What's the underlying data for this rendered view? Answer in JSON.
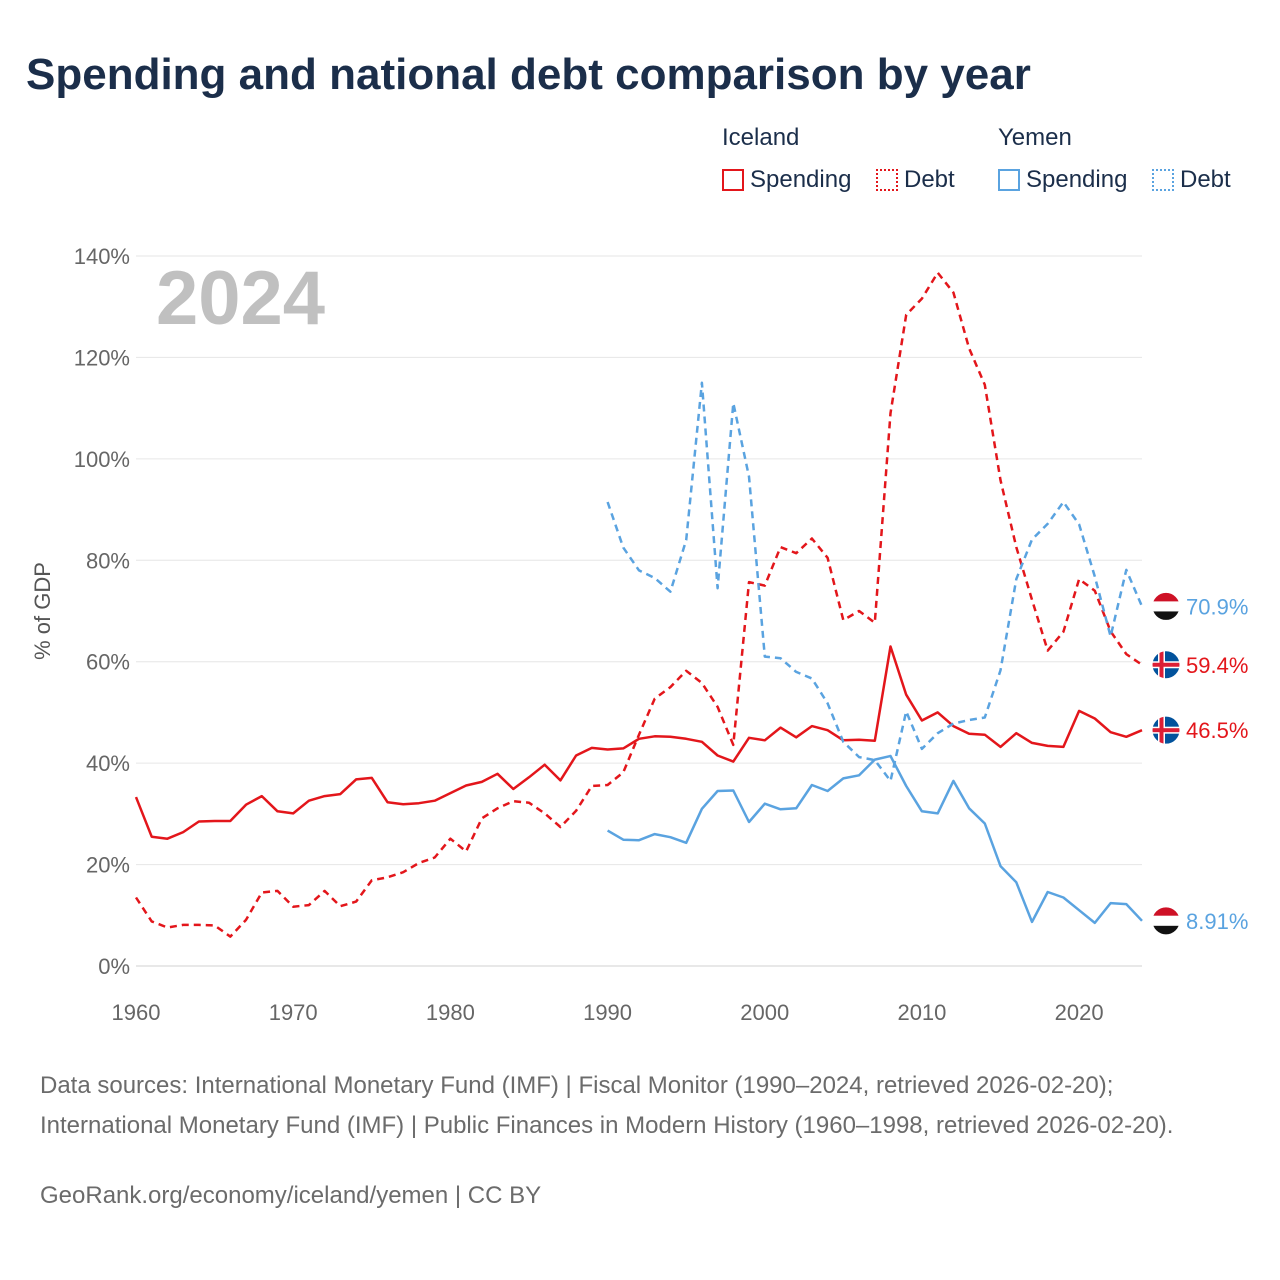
{
  "title": "Spending and national debt comparison by year",
  "legend": {
    "groups": [
      {
        "name": "Iceland",
        "color": "#e3161b",
        "items": [
          "Spending",
          "Debt"
        ]
      },
      {
        "name": "Yemen",
        "color": "#5aa3e0",
        "items": [
          "Spending",
          "Debt"
        ]
      }
    ]
  },
  "source_text": "Data sources: International Monetary Fund (IMF) | Fiscal Monitor (1990–2024, retrieved 2026-02-20); International Monetary Fund (IMF) | Public Finances in Modern History (1960–1998, retrieved 2026-02-20).",
  "credit": "GeoRank.org/economy/iceland/yemen | CC BY",
  "chart_data": {
    "type": "line",
    "title": "Spending and national debt comparison by year",
    "watermark_year": "2024",
    "xlabel": "",
    "ylabel": "% of GDP",
    "xlim": [
      1960,
      2024
    ],
    "ylim": [
      0,
      140
    ],
    "x_ticks": [
      1960,
      1970,
      1980,
      1990,
      2000,
      2010,
      2020
    ],
    "y_ticks": [
      0,
      20,
      40,
      60,
      80,
      100,
      120,
      140
    ],
    "y_tick_labels": [
      "0%",
      "20%",
      "40%",
      "60%",
      "80%",
      "100%",
      "120%",
      "140%"
    ],
    "grid": true,
    "series": [
      {
        "name": "Iceland Spending",
        "country": "Iceland",
        "color": "#e3161b",
        "dash": "solid",
        "end_label": "46.5%",
        "x": [
          1960,
          1961,
          1962,
          1963,
          1964,
          1965,
          1966,
          1967,
          1968,
          1969,
          1970,
          1971,
          1972,
          1973,
          1974,
          1975,
          1976,
          1977,
          1978,
          1979,
          1980,
          1981,
          1982,
          1983,
          1984,
          1985,
          1986,
          1987,
          1988,
          1989,
          1990,
          1991,
          1992,
          1993,
          1994,
          1995,
          1996,
          1997,
          1998,
          1999,
          2000,
          2001,
          2002,
          2003,
          2004,
          2005,
          2006,
          2007,
          2008,
          2009,
          2010,
          2011,
          2012,
          2013,
          2014,
          2015,
          2016,
          2017,
          2018,
          2019,
          2020,
          2021,
          2022,
          2023,
          2024
        ],
        "values": [
          33.3,
          25.5,
          25.1,
          26.4,
          28.5,
          28.6,
          28.6,
          31.8,
          33.5,
          30.5,
          30.1,
          32.6,
          33.5,
          33.9,
          36.8,
          37.1,
          32.3,
          31.9,
          32.1,
          32.6,
          34.1,
          35.6,
          36.3,
          37.9,
          34.9,
          37.2,
          39.7,
          36.6,
          41.5,
          43.0,
          42.7,
          42.9,
          44.8,
          45.3,
          45.2,
          44.8,
          44.2,
          41.5,
          40.3,
          45.0,
          44.5,
          47.0,
          45.1,
          47.3,
          46.5,
          44.5,
          44.6,
          44.4,
          63.0,
          53.5,
          48.4,
          50.0,
          47.3,
          45.8,
          45.6,
          43.2,
          45.9,
          44.0,
          43.4,
          43.2,
          50.3,
          48.8,
          46.1,
          45.2,
          46.5
        ]
      },
      {
        "name": "Iceland Debt",
        "country": "Iceland",
        "color": "#e3161b",
        "dash": "dashed",
        "end_label": "59.4%",
        "x": [
          1960,
          1961,
          1962,
          1963,
          1964,
          1965,
          1966,
          1967,
          1968,
          1969,
          1970,
          1971,
          1972,
          1973,
          1974,
          1975,
          1976,
          1977,
          1978,
          1979,
          1980,
          1981,
          1982,
          1983,
          1984,
          1985,
          1986,
          1987,
          1988,
          1989,
          1990,
          1991,
          1992,
          1993,
          1994,
          1995,
          1996,
          1997,
          1998,
          1999,
          2000,
          2001,
          2002,
          2003,
          2004,
          2005,
          2006,
          2007,
          2008,
          2009,
          2010,
          2011,
          2012,
          2013,
          2014,
          2015,
          2016,
          2017,
          2018,
          2019,
          2020,
          2021,
          2022,
          2023,
          2024
        ],
        "values": [
          13.5,
          8.8,
          7.6,
          8.1,
          8.1,
          8.0,
          5.8,
          9.1,
          14.5,
          14.8,
          11.7,
          12.0,
          14.8,
          11.8,
          12.7,
          16.9,
          17.5,
          18.5,
          20.3,
          21.4,
          25.1,
          22.6,
          29.1,
          31.1,
          32.5,
          32.2,
          30.1,
          27.4,
          30.6,
          35.5,
          35.7,
          38.2,
          45.6,
          52.7,
          55.0,
          58.2,
          55.8,
          51.1,
          43.6,
          75.7,
          75.0,
          82.6,
          81.4,
          84.3,
          80.5,
          68.2,
          70.0,
          67.7,
          109.0,
          128.4,
          131.6,
          136.7,
          132.8,
          121.8,
          114.6,
          95.8,
          82.6,
          72.2,
          62.2,
          65.9,
          76.3,
          74.0,
          66.0,
          61.5,
          59.4
        ]
      },
      {
        "name": "Yemen Spending",
        "country": "Yemen",
        "color": "#5aa3e0",
        "dash": "solid",
        "end_label": "8.91%",
        "x": [
          1990,
          1991,
          1992,
          1993,
          1994,
          1995,
          1996,
          1997,
          1998,
          1999,
          2000,
          2001,
          2002,
          2003,
          2004,
          2005,
          2006,
          2007,
          2008,
          2009,
          2010,
          2011,
          2012,
          2013,
          2014,
          2015,
          2016,
          2017,
          2018,
          2019,
          2020,
          2021,
          2022,
          2023,
          2024
        ],
        "values": [
          26.7,
          24.9,
          24.8,
          26.0,
          25.4,
          24.3,
          31.0,
          34.5,
          34.6,
          28.4,
          32.0,
          30.9,
          31.1,
          35.7,
          34.5,
          37.0,
          37.6,
          40.7,
          41.4,
          35.5,
          30.5,
          30.1,
          36.5,
          31.1,
          28.1,
          19.7,
          16.5,
          8.7,
          14.6,
          13.5,
          11.0,
          8.5,
          12.4,
          12.2,
          8.91
        ]
      },
      {
        "name": "Yemen Debt",
        "country": "Yemen",
        "color": "#5aa3e0",
        "dash": "dashed",
        "end_label": "70.9%",
        "x": [
          1990,
          1991,
          1992,
          1993,
          1994,
          1995,
          1996,
          1997,
          1998,
          1999,
          2000,
          2001,
          2002,
          2003,
          2004,
          2005,
          2006,
          2007,
          2008,
          2009,
          2010,
          2011,
          2012,
          2013,
          2014,
          2015,
          2016,
          2017,
          2018,
          2019,
          2020,
          2021,
          2022,
          2023,
          2024
        ],
        "values": [
          91.5,
          82.5,
          78.0,
          76.5,
          73.8,
          84.0,
          115.0,
          74.5,
          111.0,
          96.5,
          61.0,
          60.7,
          58.0,
          56.7,
          51.8,
          44.2,
          41.2,
          40.6,
          36.5,
          50.2,
          42.8,
          45.9,
          47.8,
          48.5,
          49.0,
          58.3,
          76.3,
          84.1,
          87.2,
          91.5,
          87.1,
          76.8,
          65.0,
          78.1,
          70.9
        ]
      }
    ]
  }
}
